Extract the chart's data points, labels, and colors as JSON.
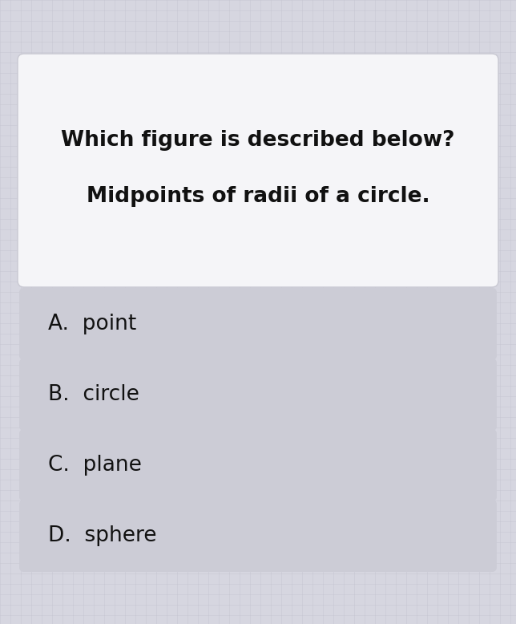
{
  "background_color": "#d6d6e0",
  "question_box_color": "#f5f5f8",
  "question_box_border": "#c8c8d2",
  "option_box_color": "#ccccd6",
  "question_line1": "Which figure is described below?",
  "question_line2": "Midpoints of radii of a circle.",
  "options": [
    "A.  point",
    "B.  circle",
    "C.  plane",
    "D.  sphere"
  ],
  "question_fontsize": 19,
  "option_fontsize": 19,
  "text_color": "#111111",
  "fig_width": 6.44,
  "fig_height": 7.78,
  "dpi": 100
}
